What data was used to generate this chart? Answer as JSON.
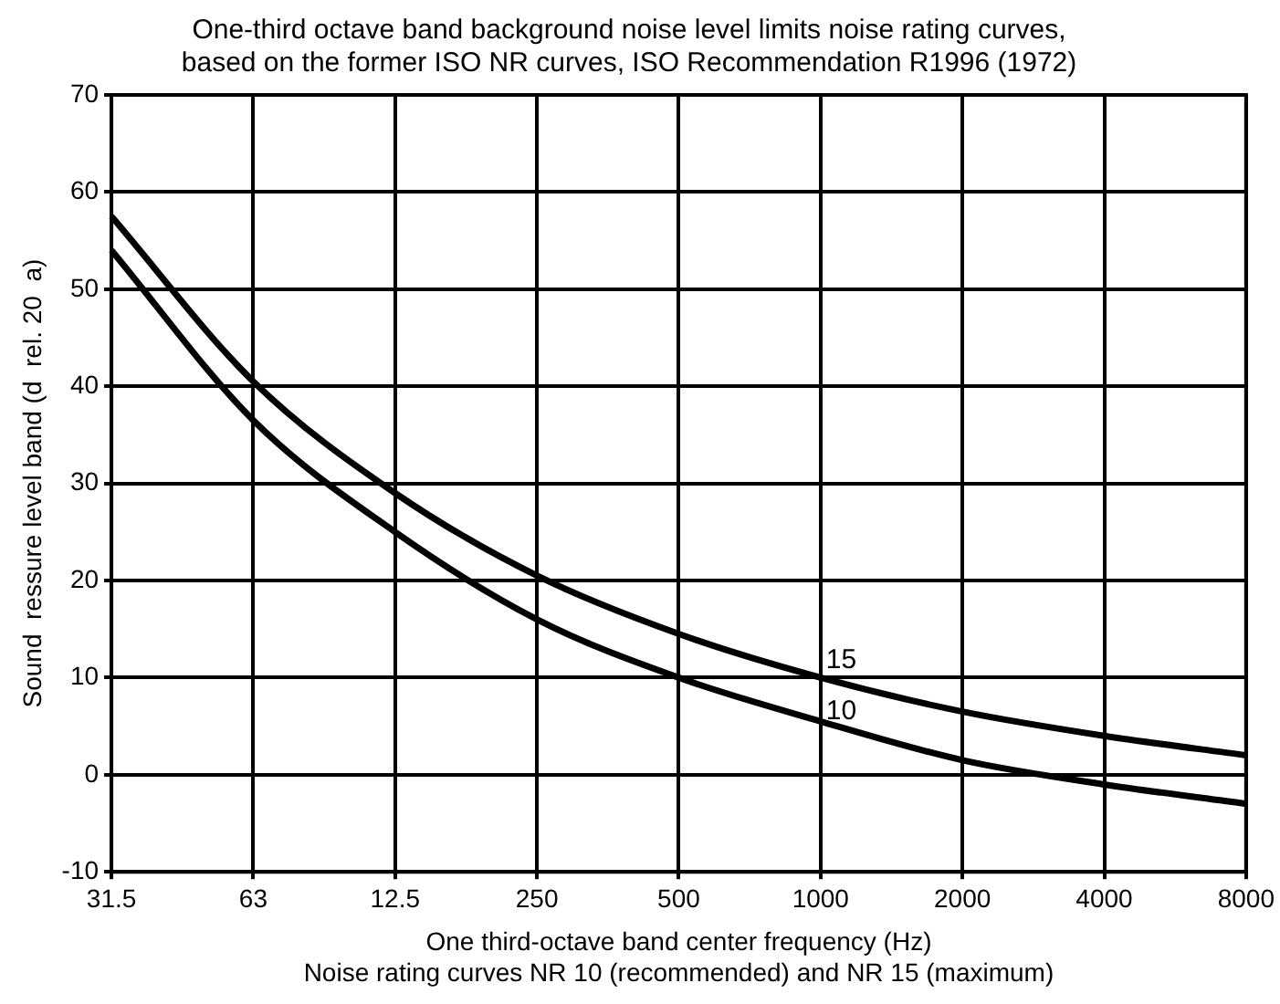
{
  "chart_data": {
    "type": "line",
    "title": "One-third octave band background noise level limits noise rating curves,\nbased on the former ISO NR curves, ISO Recommendation R1996 (1972)",
    "xlabel": "One third-octave band center frequency (Hz)\nNoise rating curves NR 10 (recommended) and NR 15 (maximum)",
    "ylabel": "Sound  ressure level band (d  rel. 20  a)",
    "categories": [
      "31.5",
      "63",
      "12.5",
      "250",
      "500",
      "1000",
      "2000",
      "4000",
      "8000"
    ],
    "series": [
      {
        "name": "15",
        "color": "#000000",
        "values": [
          57.5,
          40.5,
          29,
          20.5,
          14.5,
          10,
          6.5,
          4,
          2
        ]
      },
      {
        "name": "10",
        "color": "#000000",
        "values": [
          54,
          36.5,
          25,
          16,
          10,
          5.5,
          1.5,
          -1,
          -3
        ]
      }
    ],
    "ylim": [
      -10,
      70
    ],
    "yticks": [
      -10,
      0,
      10,
      20,
      30,
      40,
      50,
      60,
      70
    ],
    "grid": true,
    "legend": false,
    "marker": "none",
    "line_style": "solid"
  }
}
